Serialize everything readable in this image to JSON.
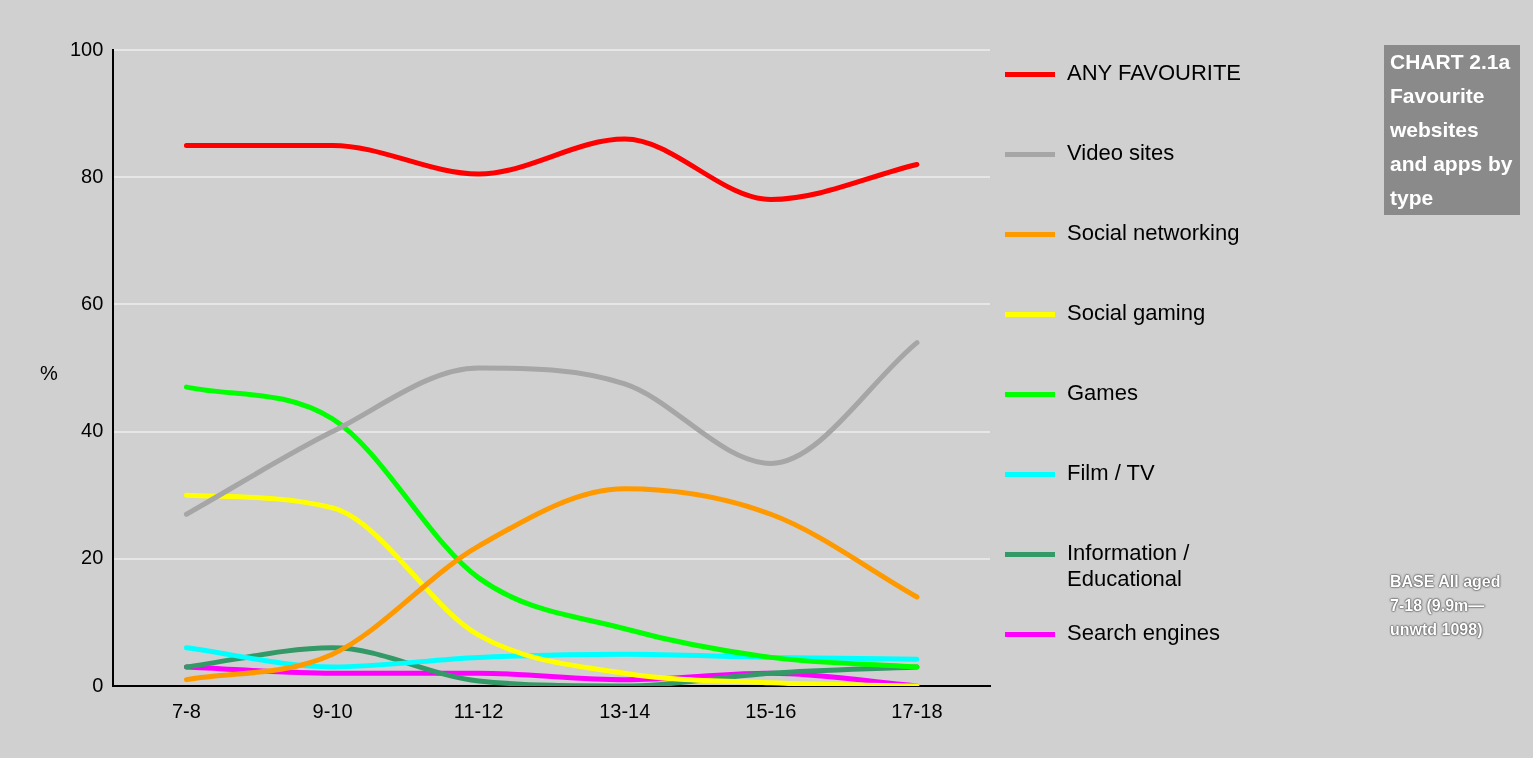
{
  "chart_data": {
    "type": "line",
    "title": "CHART 2.1a Favourite websites and apps by type",
    "ylabel": "%",
    "annotations": [
      "BASE All aged 7-18 (9.9m—unwtd 1098)"
    ],
    "categories": [
      "7-8",
      "9-10",
      "11-12",
      "13-14",
      "15-16",
      "17-18"
    ],
    "series": [
      {
        "name": "ANY FAVOURITE",
        "color": "#ff0000",
        "values": [
          85,
          85,
          80.5,
          86,
          76.5,
          82
        ]
      },
      {
        "name": "Video sites",
        "color": "#a6a6a6",
        "values": [
          27,
          40,
          50,
          47.5,
          35,
          54
        ]
      },
      {
        "name": "Social networking",
        "color": "#ff9900",
        "values": [
          1,
          5,
          22,
          31,
          27,
          14
        ]
      },
      {
        "name": "Social gaming",
        "color": "#ffff00",
        "values": [
          30,
          28,
          8,
          2,
          0.5,
          0
        ]
      },
      {
        "name": "Games",
        "color": "#00ff00",
        "values": [
          47,
          42,
          17,
          9,
          4.5,
          3
        ]
      },
      {
        "name": "Film / TV",
        "color": "#00ffff",
        "values": [
          6,
          3,
          4.5,
          5,
          4.5,
          4.2
        ]
      },
      {
        "name": "Information / Educational",
        "color": "#339966",
        "values": [
          3,
          6,
          0.8,
          0,
          2,
          3
        ]
      },
      {
        "name": "Search engines",
        "color": "#ff00ff",
        "values": [
          3,
          2,
          2,
          1,
          2,
          0
        ]
      }
    ],
    "ylim": [
      0,
      100
    ],
    "yticks": [
      0,
      20,
      40,
      60,
      80,
      100
    ],
    "grid": "y",
    "legend": "right",
    "marker": "none",
    "line_style": "solid"
  }
}
